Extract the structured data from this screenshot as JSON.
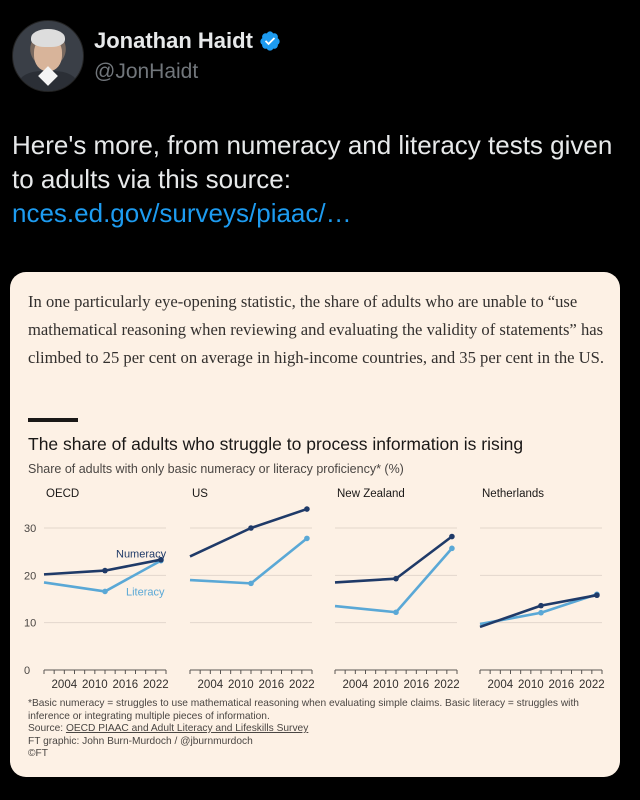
{
  "author": {
    "name": "Jonathan Haidt",
    "handle": "@JonHaidt"
  },
  "tweet": {
    "text": "Here's more, from numeracy and literacy tests given to adults via this source: ",
    "link": "nces.ed.gov/surveys/piaac/…"
  },
  "card": {
    "quote": "In one particularly eye-opening statistic, the share of adults who are unable to “use mathematical reasoning when reviewing and evaluating the validity of statements” has climbed to 25 per cent on average in high-income countries, and 35 per cent in the US.",
    "footnote_line1": "*Basic numeracy = struggles to use mathematical reasoning when evaluating simple claims. Basic literacy = struggles with",
    "footnote_line2": "inference or integrating multiple pieces of information.",
    "source_prefix": "Source: ",
    "source_link": "OECD PIAAC and Adult Literacy and Lifeskills Survey",
    "credit": "FT graphic: John Burn-Murdoch / @jburnmurdoch",
    "copyright": "©FT"
  },
  "colors": {
    "numeracy": "#1f3a68",
    "literacy": "#5aa8d6",
    "card_bg": "#fdf1e5",
    "link": "#1d9bf0"
  },
  "chart_data": {
    "type": "line",
    "title": "The share of adults who struggle to process information is rising",
    "subtitle": "Share of adults with only basic numeracy or literacy proficiency* (%)",
    "ylim": [
      0,
      35
    ],
    "yticks": [
      0,
      10,
      20,
      30
    ],
    "xlim": [
      2000,
      2024
    ],
    "xtick_labels": [
      "2004",
      "2010",
      "2016",
      "2022"
    ],
    "grid": true,
    "series_labels": {
      "numeracy": "Numeracy",
      "literacy": "Literacy"
    },
    "panels": [
      {
        "name": "OECD",
        "series": [
          {
            "name": "Numeracy",
            "x": [
              2000,
              2012,
              2023
            ],
            "y": [
              20.2,
              21,
              23.3
            ]
          },
          {
            "name": "Literacy",
            "x": [
              2000,
              2012,
              2023
            ],
            "y": [
              18.5,
              16.6,
              23.1
            ]
          }
        ]
      },
      {
        "name": "US",
        "series": [
          {
            "name": "Numeracy",
            "x": [
              2000,
              2012,
              2023
            ],
            "y": [
              24,
              30,
              34
            ]
          },
          {
            "name": "Literacy",
            "x": [
              2000,
              2012,
              2023
            ],
            "y": [
              19,
              18.3,
              27.8
            ]
          }
        ]
      },
      {
        "name": "New Zealand",
        "series": [
          {
            "name": "Numeracy",
            "x": [
              2000,
              2012,
              2023
            ],
            "y": [
              18.5,
              19.3,
              28.2
            ]
          },
          {
            "name": "Literacy",
            "x": [
              2000,
              2012,
              2023
            ],
            "y": [
              13.5,
              12.2,
              25.7
            ]
          }
        ]
      },
      {
        "name": "Netherlands",
        "series": [
          {
            "name": "Numeracy",
            "x": [
              2000,
              2012,
              2023
            ],
            "y": [
              9.1,
              13.6,
              15.8
            ]
          },
          {
            "name": "Literacy",
            "x": [
              2000,
              2012,
              2023
            ],
            "y": [
              9.7,
              12.1,
              16
            ]
          }
        ]
      }
    ]
  }
}
